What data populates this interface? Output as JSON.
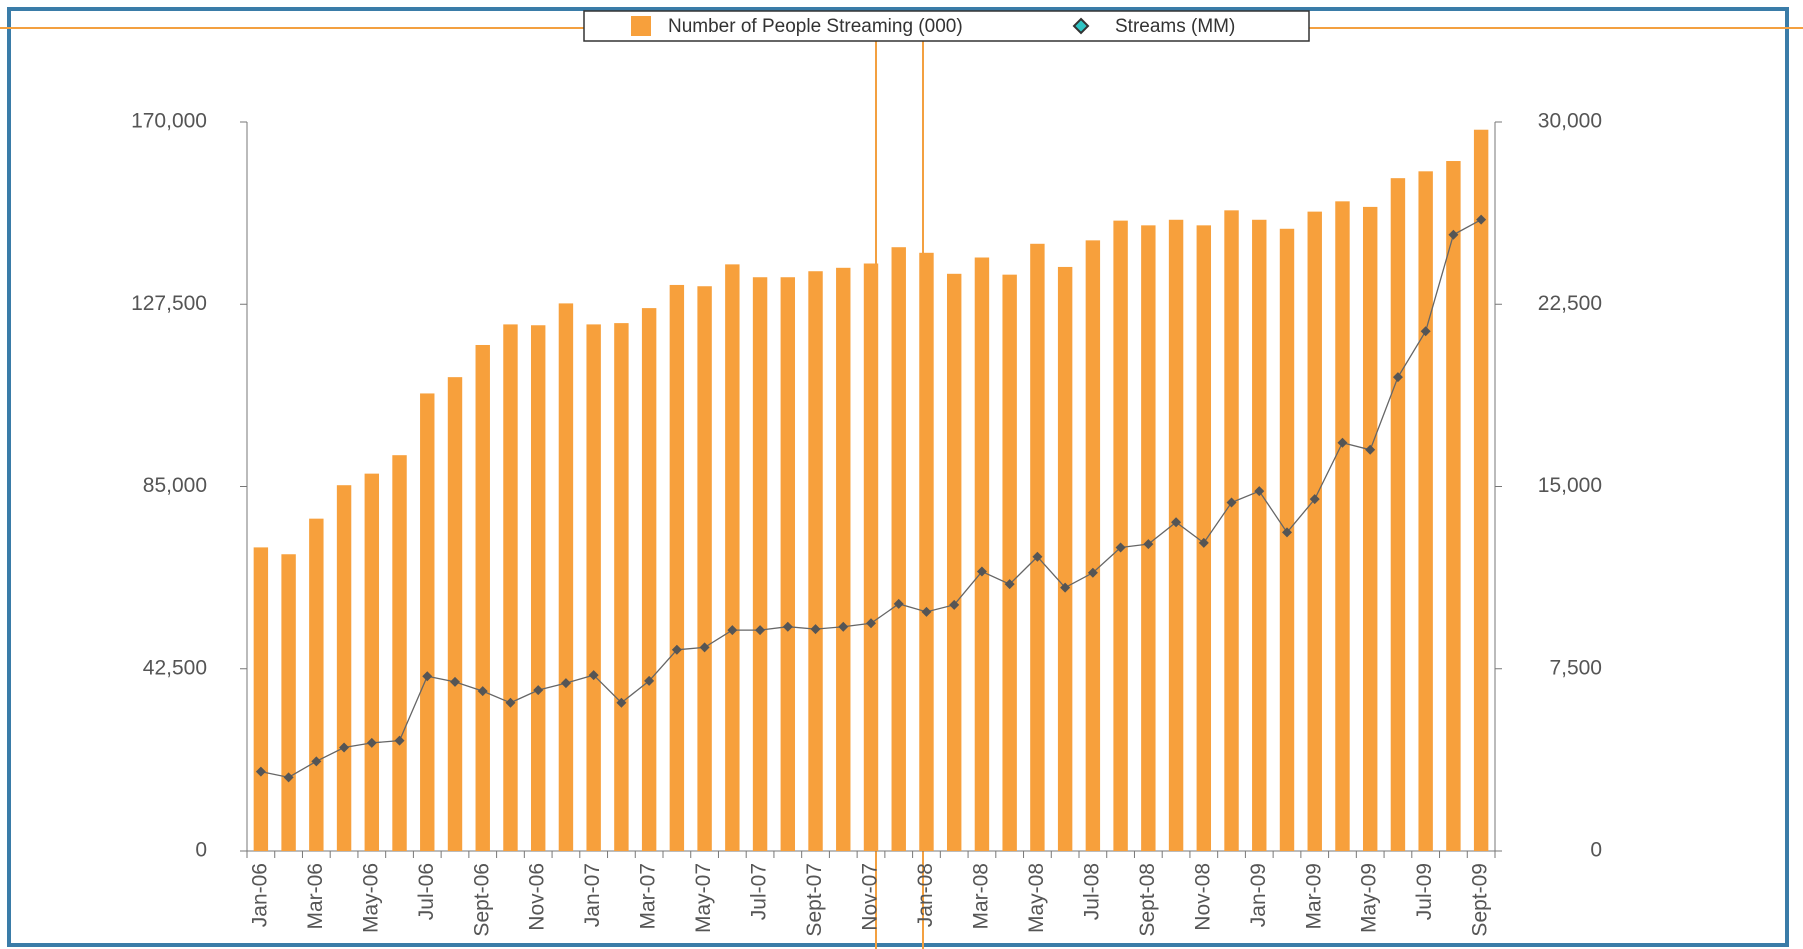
{
  "chart_data": {
    "type": "bar",
    "categories": [
      "Jan-06",
      null,
      "Mar-06",
      null,
      "May-06",
      null,
      "Jul-06",
      null,
      "Sept-06",
      null,
      "Nov-06",
      null,
      "Jan-07",
      null,
      "Mar-07",
      null,
      "May-07",
      null,
      "Jul-07",
      null,
      "Sept-07",
      null,
      "Nov-07",
      null,
      "Jan-08",
      null,
      "Mar-08",
      null,
      "May-08",
      null,
      "Jul-08",
      null,
      "Sept-08",
      null,
      "Nov-08",
      null,
      "Jan-09",
      null,
      "Mar-09",
      null,
      "May-09",
      null,
      "Jul-09",
      null,
      "Sept-09"
    ],
    "series": [
      {
        "name": "Number of People Streaming (000)",
        "type": "bar",
        "color": "#f7a03c",
        "values": [
          70800,
          69200,
          77500,
          85300,
          88000,
          92300,
          106700,
          110500,
          118000,
          122800,
          122600,
          127700,
          122800,
          123100,
          126600,
          132000,
          131700,
          136800,
          133800,
          133800,
          135200,
          136000,
          137000,
          140800,
          139500,
          134600,
          138400,
          134400,
          141600,
          136200,
          142400,
          147000,
          145900,
          147200,
          145900,
          149400,
          147200,
          145100,
          149100,
          151500,
          150200,
          156900,
          158500,
          160900,
          168200
        ]
      },
      {
        "name": "Streams (MM)",
        "type": "line",
        "axis": "y2",
        "color": "#666666",
        "values": [
          3265,
          3030,
          3690,
          4260,
          4450,
          4540,
          7190,
          6960,
          6580,
          6100,
          6620,
          6910,
          7240,
          6100,
          7000,
          8280,
          8380,
          9090,
          9090,
          9230,
          9130,
          9230,
          9370,
          10170,
          9840,
          10130,
          11500,
          10980,
          12110,
          10840,
          11450,
          12490,
          12630,
          13530,
          12680,
          14340,
          14810,
          13110,
          14480,
          16800,
          16510,
          19500,
          21390,
          25360,
          25980
        ]
      }
    ],
    "ylim": [
      0,
      170000
    ],
    "yticks": [
      0,
      {
        "value": 42500,
        "label": "42,500"
      },
      {
        "value": 85000,
        "label": "85,000"
      },
      {
        "value": 127500,
        "label": "127,500"
      },
      {
        "value": 170000,
        "label": "170,000"
      }
    ],
    "y2lim": [
      0,
      30000
    ],
    "y2ticks": [
      0,
      {
        "value": 7500,
        "label": "7,500"
      },
      {
        "value": 15000,
        "label": "15,000"
      },
      {
        "value": 22500,
        "label": "22,500"
      },
      {
        "value": 30000,
        "label": "30,000"
      }
    ],
    "legend": "top"
  }
}
